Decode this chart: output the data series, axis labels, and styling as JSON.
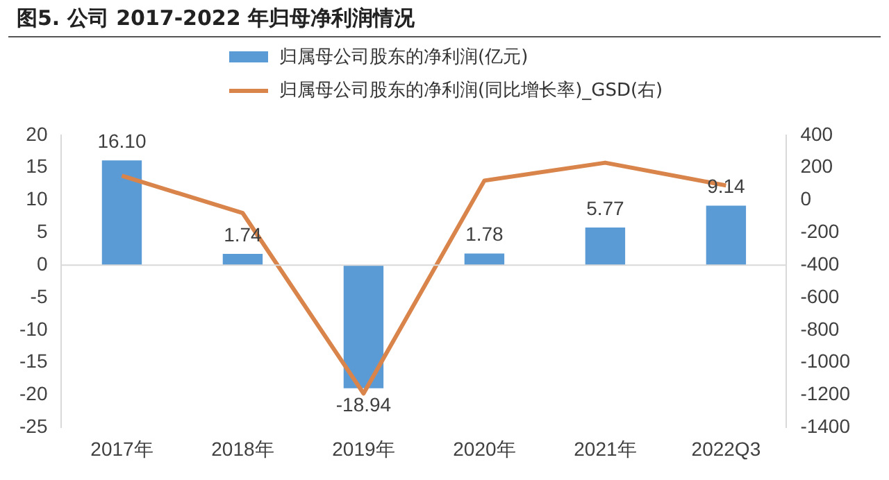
{
  "chart_data": {
    "type": "bar",
    "title": "图5. 公司 2017-2022 年归母净利润情况",
    "categories": [
      "2017年",
      "2018年",
      "2019年",
      "2020年",
      "2021年",
      "2022Q3"
    ],
    "series": [
      {
        "name": "归属母公司股东的净利润(亿元)",
        "color": "#5b9bd5",
        "values": [
          16.1,
          1.74,
          -18.94,
          1.78,
          5.77,
          9.14
        ],
        "value_labels": [
          "16.10",
          "1.74",
          "-18.94",
          "1.78",
          "5.77",
          "9.14"
        ]
      },
      {
        "name": "归属母公司股东的净利润(同比增长率)_GSD(右)",
        "type": "line",
        "axis": "y2",
        "color": "#d9844a",
        "values": [
          150,
          -80,
          -1190,
          120,
          230,
          90
        ]
      }
    ],
    "ylim": [
      -25,
      20
    ],
    "yticks": [
      -25,
      -20,
      -15,
      -10,
      -5,
      0,
      5,
      10,
      15,
      20
    ],
    "y2lim": [
      -1400,
      400
    ],
    "y2ticks": [
      -1400,
      -1200,
      -1000,
      -800,
      -600,
      -400,
      -200,
      0,
      200,
      400
    ],
    "ref_lines": [
      {
        "axis": "y",
        "value": 0,
        "color": "#d9d9d9"
      }
    ],
    "legend": "top",
    "marker": "none",
    "line_style": "solid"
  }
}
